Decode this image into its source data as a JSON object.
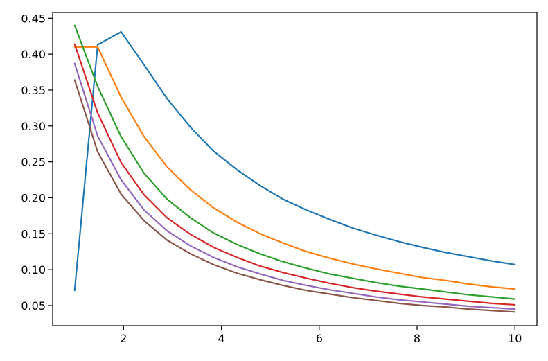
{
  "chart_data": {
    "type": "line",
    "title": "",
    "xlabel": "",
    "ylabel": "",
    "xlim": [
      0.55,
      10.45
    ],
    "ylim": [
      0.022,
      0.458
    ],
    "grid": false,
    "legend": "none",
    "x_ticks": [
      {
        "value": 2,
        "label": "2"
      },
      {
        "value": 4,
        "label": "4"
      },
      {
        "value": 6,
        "label": "6"
      },
      {
        "value": 8,
        "label": "8"
      },
      {
        "value": 10,
        "label": "10"
      }
    ],
    "y_ticks": [
      {
        "value": 0.05,
        "label": "0.05"
      },
      {
        "value": 0.1,
        "label": "0.10"
      },
      {
        "value": 0.15,
        "label": "0.15"
      },
      {
        "value": 0.2,
        "label": "0.20"
      },
      {
        "value": 0.25,
        "label": "0.25"
      },
      {
        "value": 0.3,
        "label": "0.30"
      },
      {
        "value": 0.35,
        "label": "0.35"
      },
      {
        "value": 0.4,
        "label": "0.40"
      },
      {
        "value": 0.45,
        "label": "0.45"
      }
    ],
    "x": [
      1.0,
      1.47,
      1.95,
      2.42,
      2.89,
      3.37,
      3.84,
      4.32,
      4.79,
      5.26,
      5.74,
      6.21,
      6.68,
      7.16,
      7.63,
      8.11,
      8.58,
      9.05,
      9.53,
      10.0
    ],
    "series": [
      {
        "color": "#1f77b4",
        "values": [
          0.071,
          0.413,
          0.431,
          0.385,
          0.338,
          0.298,
          0.265,
          0.239,
          0.217,
          0.198,
          0.183,
          0.17,
          0.158,
          0.148,
          0.139,
          0.131,
          0.124,
          0.118,
          0.112,
          0.107
        ]
      },
      {
        "color": "#ff7f0e",
        "values": [
          0.41,
          0.41,
          0.34,
          0.285,
          0.243,
          0.211,
          0.186,
          0.166,
          0.15,
          0.137,
          0.125,
          0.116,
          0.108,
          0.101,
          0.095,
          0.089,
          0.085,
          0.08,
          0.076,
          0.073
        ]
      },
      {
        "color": "#2ca02c",
        "values": [
          0.44,
          0.355,
          0.285,
          0.234,
          0.198,
          0.172,
          0.151,
          0.135,
          0.122,
          0.111,
          0.102,
          0.094,
          0.088,
          0.082,
          0.077,
          0.073,
          0.069,
          0.065,
          0.062,
          0.059
        ]
      },
      {
        "color": "#d62728",
        "values": [
          0.414,
          0.318,
          0.249,
          0.204,
          0.172,
          0.149,
          0.131,
          0.117,
          0.105,
          0.096,
          0.088,
          0.081,
          0.075,
          0.07,
          0.066,
          0.062,
          0.059,
          0.056,
          0.053,
          0.051
        ]
      },
      {
        "color": "#9467bd",
        "values": [
          0.387,
          0.286,
          0.225,
          0.183,
          0.154,
          0.133,
          0.117,
          0.104,
          0.094,
          0.085,
          0.078,
          0.072,
          0.067,
          0.062,
          0.058,
          0.055,
          0.052,
          0.049,
          0.047,
          0.045
        ]
      },
      {
        "color": "#8c564b",
        "values": [
          0.364,
          0.264,
          0.205,
          0.168,
          0.141,
          0.122,
          0.107,
          0.095,
          0.086,
          0.078,
          0.071,
          0.066,
          0.061,
          0.057,
          0.053,
          0.05,
          0.048,
          0.045,
          0.043,
          0.041
        ]
      }
    ]
  }
}
